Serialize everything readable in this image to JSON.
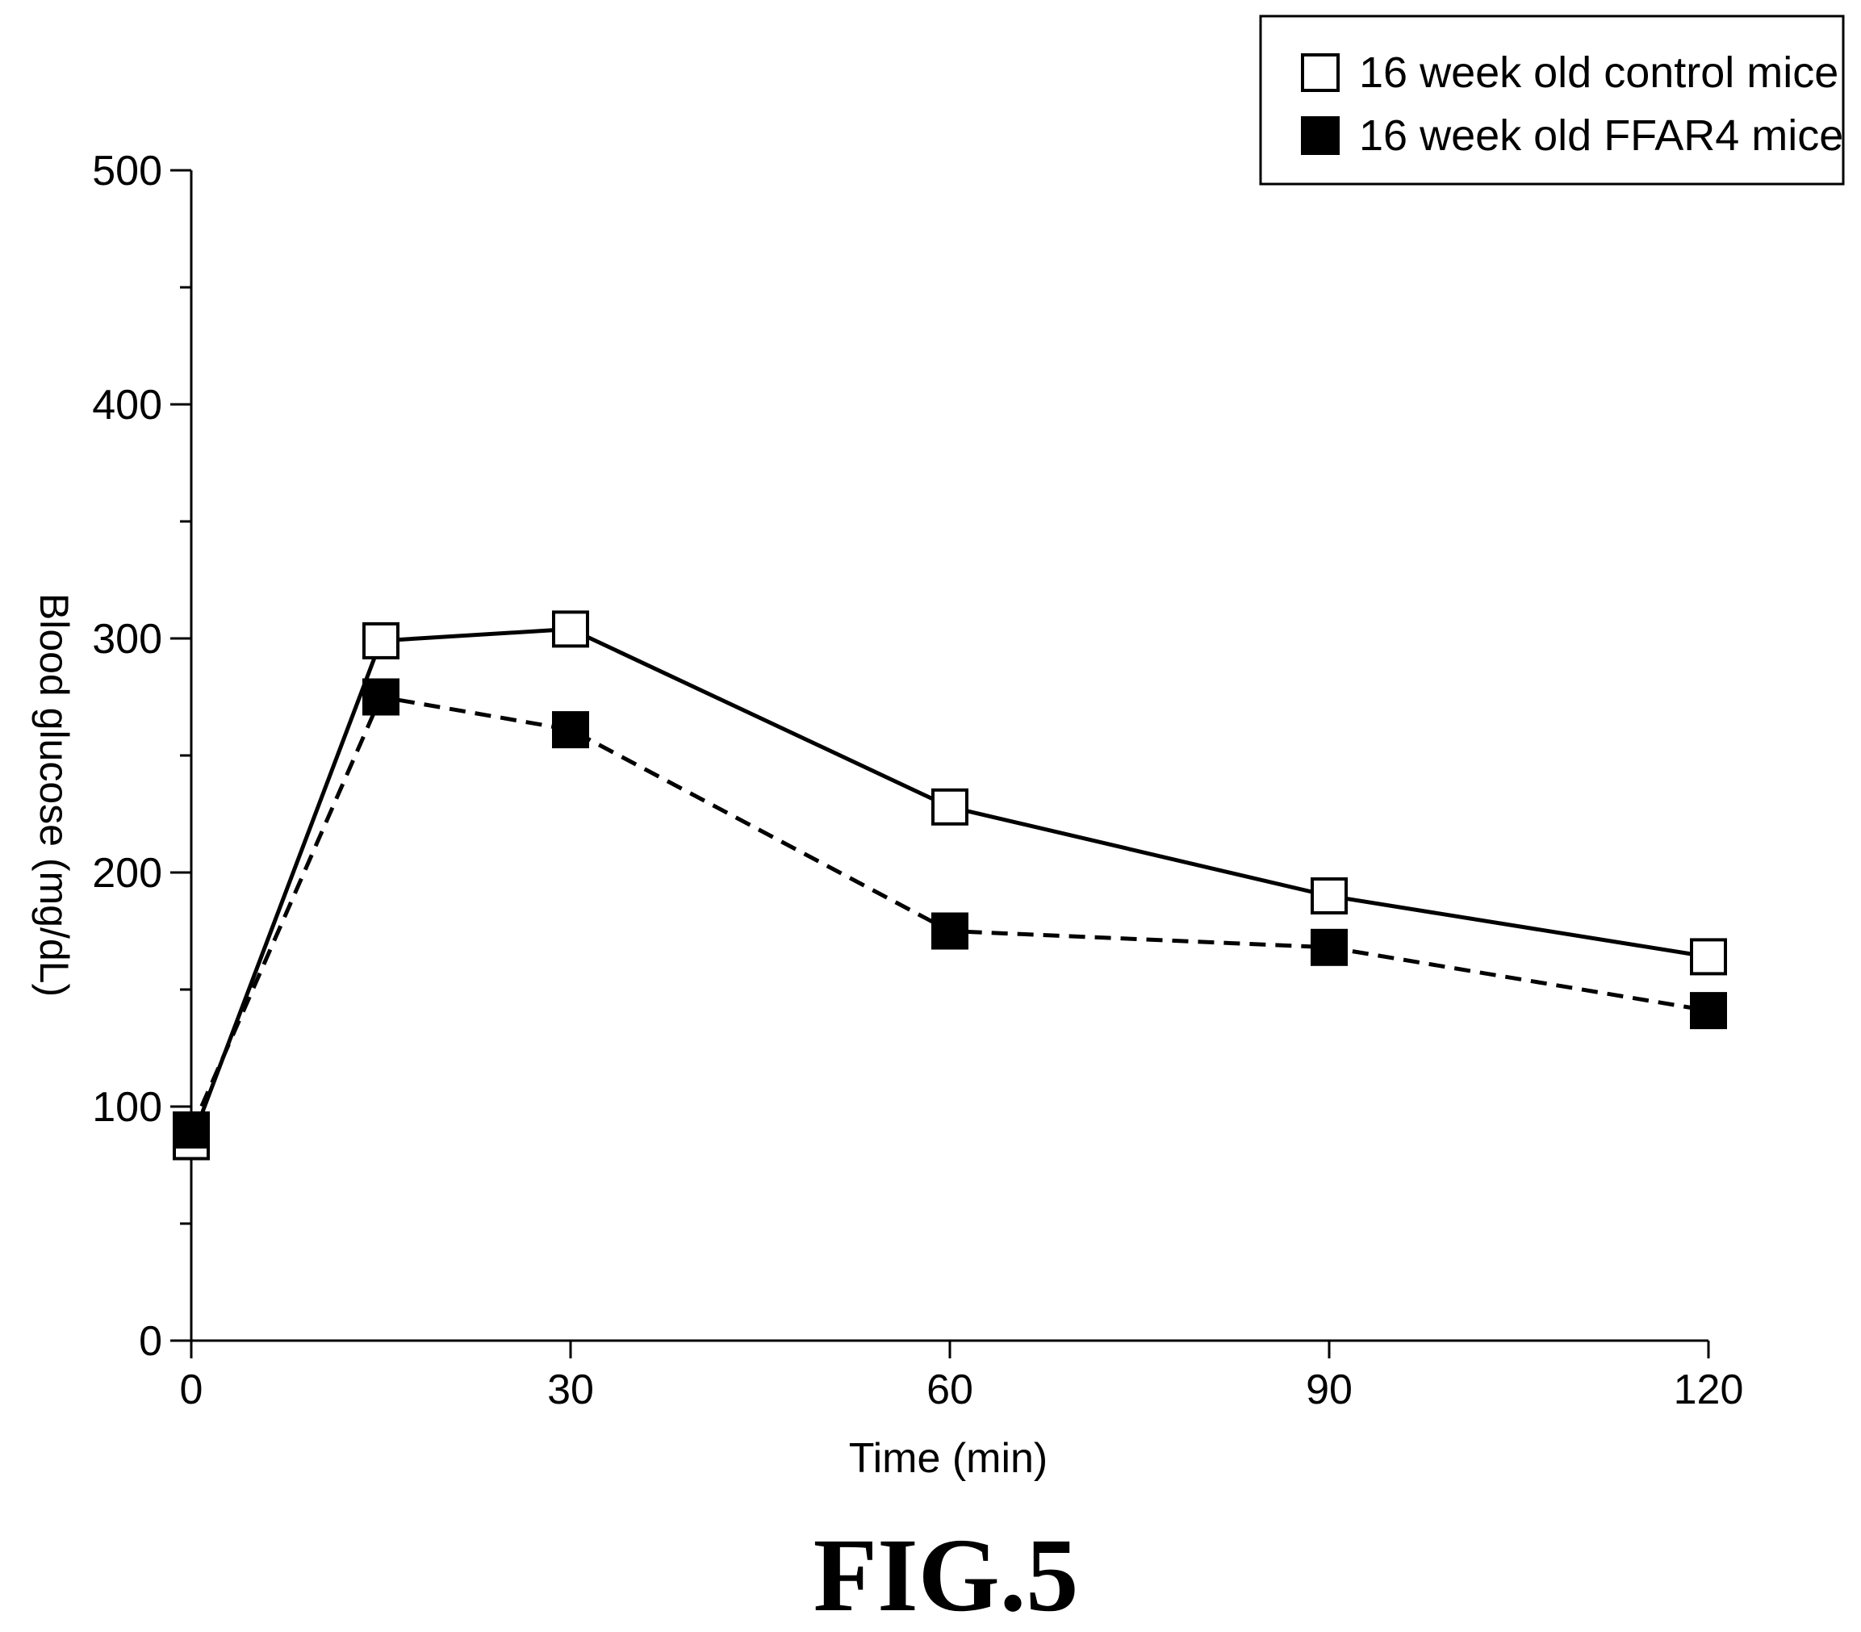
{
  "figure_label": "FIG.5",
  "chart_data": {
    "type": "line",
    "title": "",
    "xlabel": "Time (min)",
    "ylabel": "Blood glucose (mg/dL)",
    "xlim": [
      0,
      120
    ],
    "ylim": [
      0,
      500
    ],
    "x_ticks": [
      0,
      30,
      60,
      90,
      120
    ],
    "x_tick_labels": [
      "0",
      "30",
      "60",
      "90",
      "120"
    ],
    "y_ticks": [
      0,
      100,
      200,
      300,
      400,
      500
    ],
    "y_tick_labels": [
      "0",
      "100",
      "200",
      "300",
      "400",
      "500"
    ],
    "y_minor_ticks": [
      50,
      150,
      250,
      350,
      450
    ],
    "grid": false,
    "legend_position": "top-right",
    "series": [
      {
        "name": "16 week old control mice",
        "marker": "open-square",
        "line_style": "solid",
        "color": "#000000",
        "x": [
          0,
          15,
          30,
          60,
          90,
          120
        ],
        "values": [
          85,
          299,
          304,
          228,
          190,
          164
        ]
      },
      {
        "name": "16 week old FFAR4 mice",
        "marker": "filled-square",
        "line_style": "dashed",
        "color": "#000000",
        "x": [
          0,
          15,
          30,
          60,
          90,
          120
        ],
        "values": [
          90,
          275,
          261,
          175,
          168,
          141
        ]
      }
    ]
  }
}
